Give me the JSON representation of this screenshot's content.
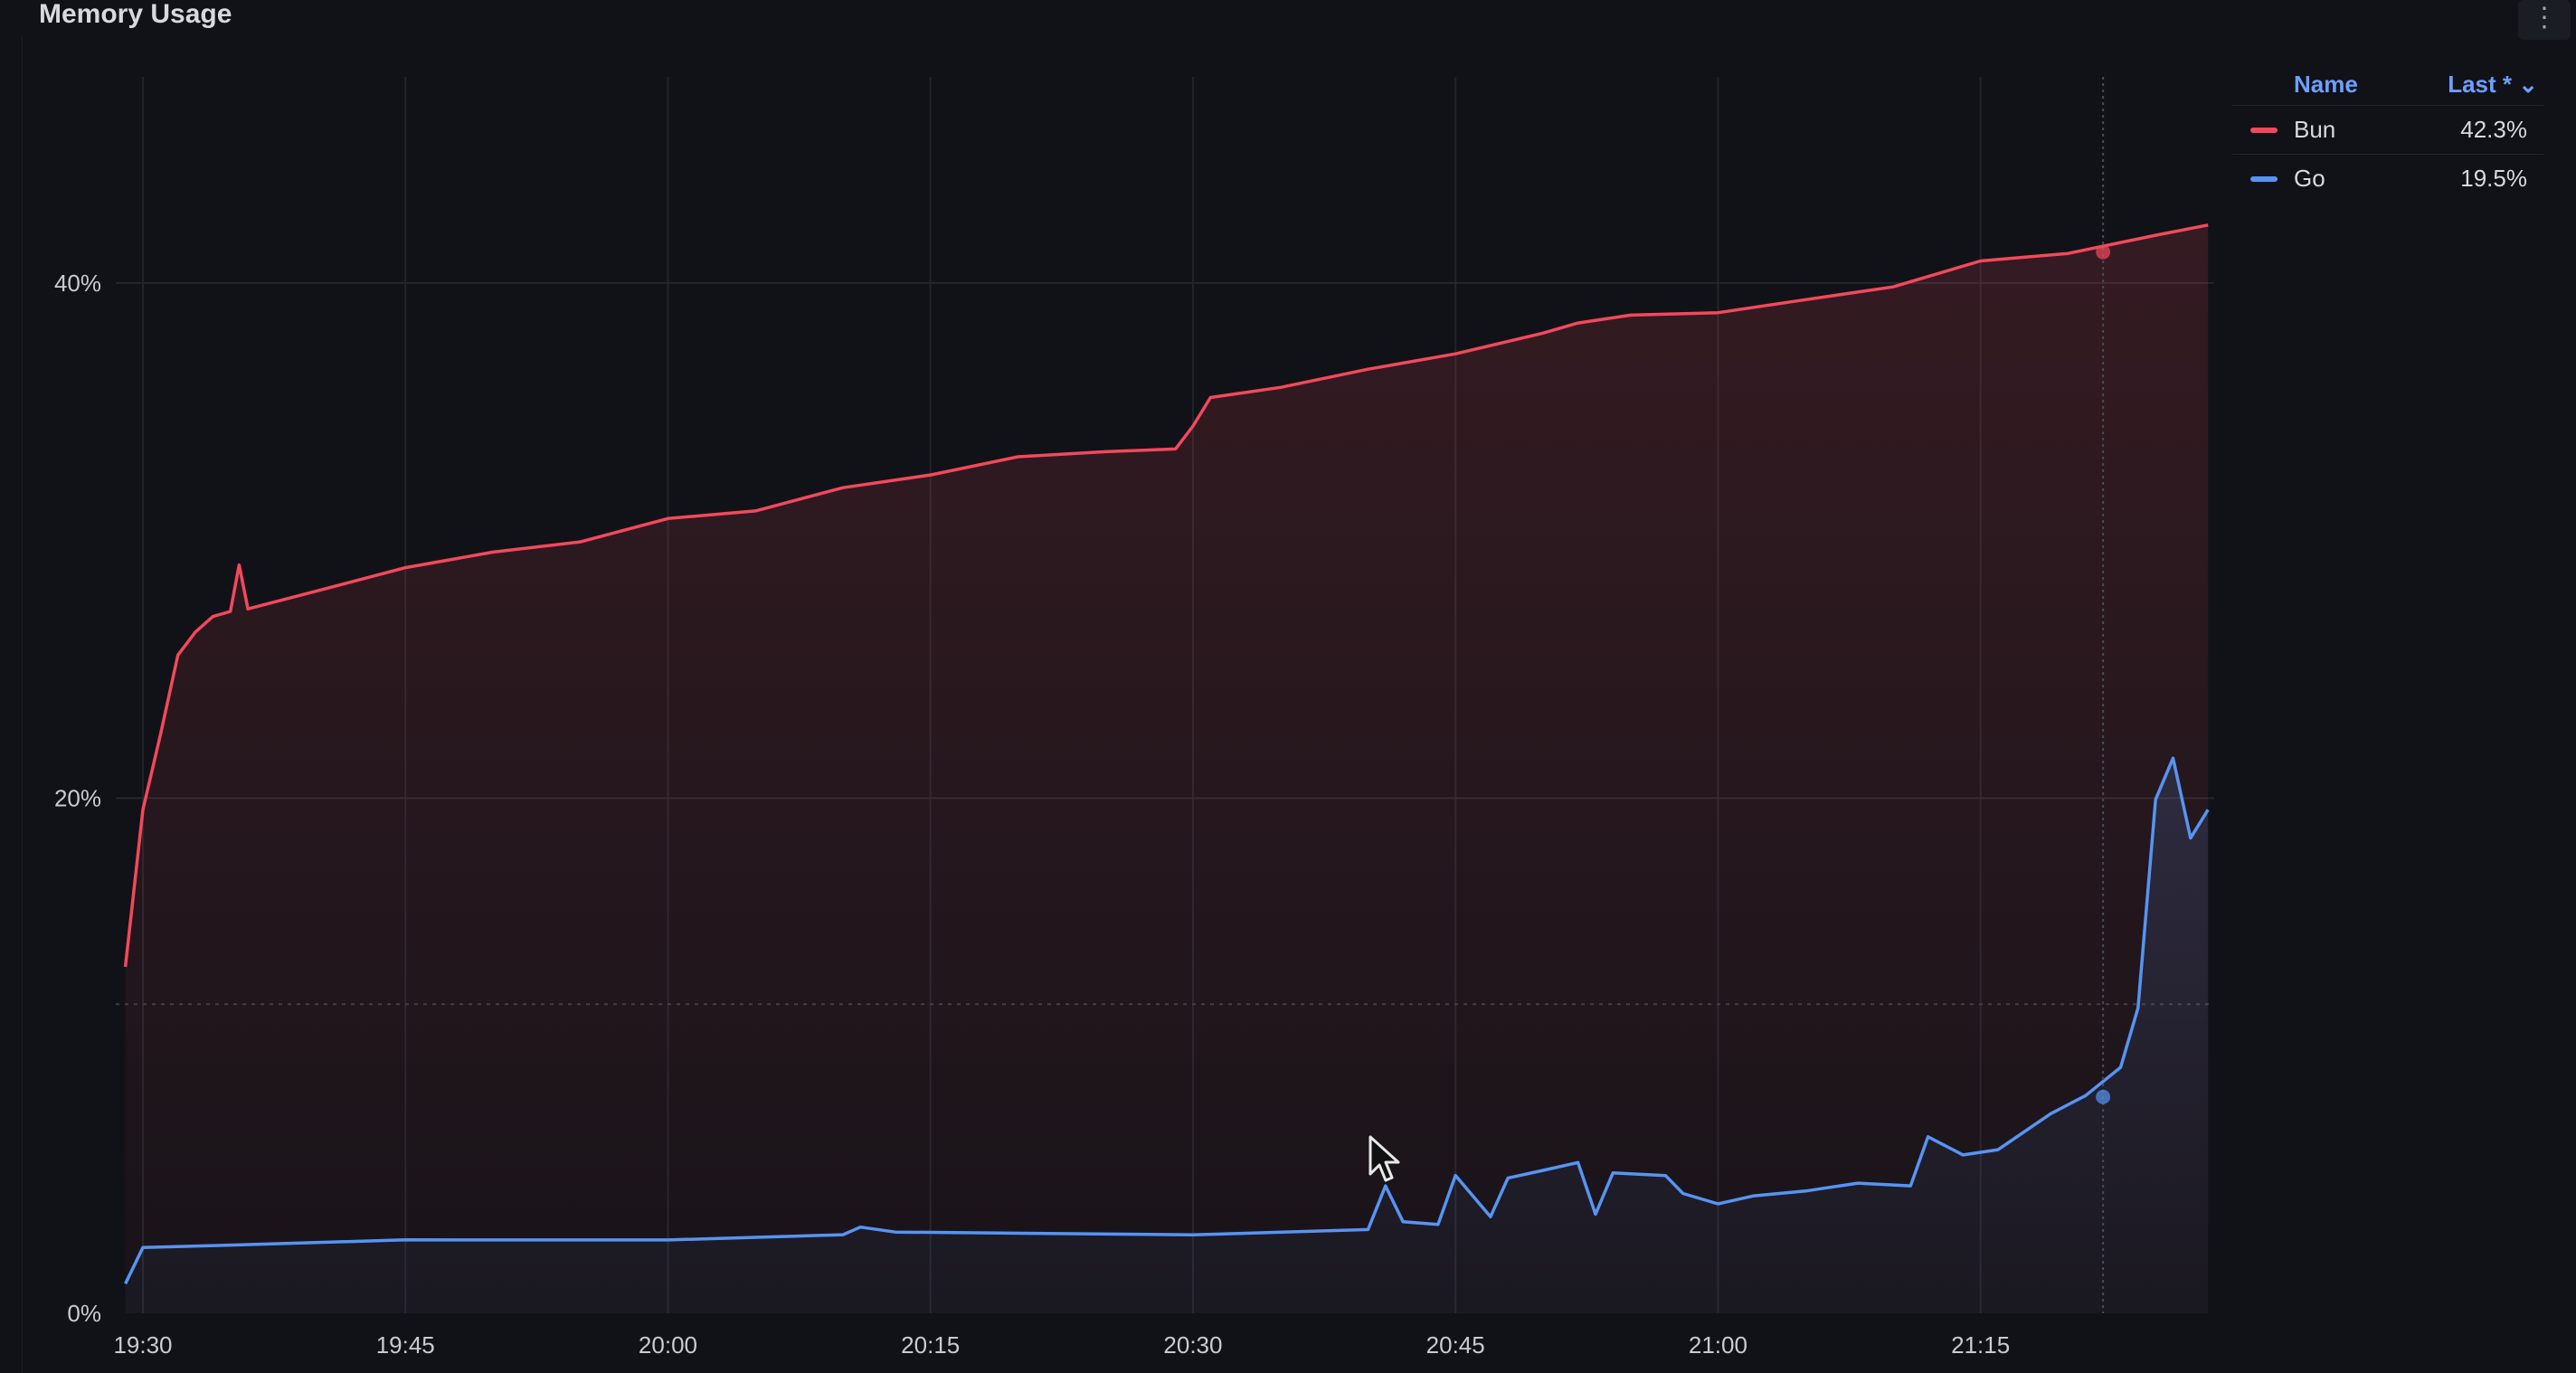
{
  "panel": {
    "title": "Memory Usage",
    "menu_icon": "more-vertical-icon"
  },
  "legend": {
    "headers": {
      "name": "Name",
      "last": "Last * ⌄"
    },
    "items": [
      {
        "name": "Bun",
        "value": "42.3%",
        "color": "#f2495c"
      },
      {
        "name": "Go",
        "value": "19.5%",
        "color": "#5794f2"
      }
    ]
  },
  "chart_data": {
    "type": "area",
    "title": "Memory Usage",
    "xlabel": "",
    "ylabel": "",
    "x_ticks": [
      "19:30",
      "19:45",
      "20:00",
      "20:15",
      "20:30",
      "20:45",
      "21:00",
      "21:15"
    ],
    "y_ticks": [
      "0%",
      "20%",
      "40%"
    ],
    "ylim": [
      0,
      48
    ],
    "xlim": [
      "19:29",
      "21:28"
    ],
    "grid": true,
    "legend_position": "right",
    "threshold": 12,
    "hover_time": "21:22",
    "series": [
      {
        "name": "Bun",
        "color": "#f2495c",
        "points": [
          [
            "19:29",
            13.5
          ],
          [
            "19:30",
            19.5
          ],
          [
            "19:31",
            22.5
          ],
          [
            "19:32",
            25.5
          ],
          [
            "19:33",
            26.5
          ],
          [
            "19:34",
            27.0
          ],
          [
            "19:35",
            27.3
          ],
          [
            "19:35:30",
            29.0
          ],
          [
            "19:36",
            27.4
          ],
          [
            "19:40",
            28.0
          ],
          [
            "19:45",
            29.0
          ],
          [
            "19:50",
            29.5
          ],
          [
            "19:55",
            30.0
          ],
          [
            "20:00",
            30.8
          ],
          [
            "20:05",
            31.2
          ],
          [
            "20:10",
            32.0
          ],
          [
            "20:15",
            32.6
          ],
          [
            "20:20",
            33.2
          ],
          [
            "20:25",
            33.5
          ],
          [
            "20:29",
            33.5
          ],
          [
            "20:30",
            34.5
          ],
          [
            "20:31",
            35.5
          ],
          [
            "20:35",
            36.0
          ],
          [
            "20:40",
            36.6
          ],
          [
            "20:45",
            37.3
          ],
          [
            "20:50",
            38.0
          ],
          [
            "20:52",
            38.5
          ],
          [
            "20:55",
            38.7
          ],
          [
            "21:00",
            38.9
          ],
          [
            "21:05",
            39.3
          ],
          [
            "21:10",
            39.9
          ],
          [
            "21:15",
            40.8
          ],
          [
            "21:20",
            41.2
          ],
          [
            "21:25",
            41.8
          ],
          [
            "21:28",
            42.3
          ]
        ]
      },
      {
        "name": "Go",
        "color": "#5794f2",
        "points": [
          [
            "19:29",
            1.2
          ],
          [
            "19:30",
            2.5
          ],
          [
            "19:35",
            2.7
          ],
          [
            "19:45",
            2.8
          ],
          [
            "20:00",
            2.9
          ],
          [
            "20:10",
            3.0
          ],
          [
            "20:11",
            3.4
          ],
          [
            "20:13",
            3.1
          ],
          [
            "20:30",
            3.1
          ],
          [
            "20:40",
            3.2
          ],
          [
            "20:41",
            5.0
          ],
          [
            "20:42",
            3.5
          ],
          [
            "20:44",
            3.5
          ],
          [
            "20:45",
            5.3
          ],
          [
            "20:47",
            3.8
          ],
          [
            "20:48",
            5.2
          ],
          [
            "20:50",
            5.6
          ],
          [
            "20:52",
            5.8
          ],
          [
            "20:53",
            3.9
          ],
          [
            "20:54",
            5.4
          ],
          [
            "20:57",
            5.4
          ],
          [
            "20:58",
            4.6
          ],
          [
            "21:00",
            4.3
          ],
          [
            "21:02",
            4.5
          ],
          [
            "21:05",
            4.8
          ],
          [
            "21:08",
            5.0
          ],
          [
            "21:11",
            5.0
          ],
          [
            "21:12",
            6.8
          ],
          [
            "21:14",
            6.2
          ],
          [
            "21:16",
            6.3
          ],
          [
            "21:19",
            7.8
          ],
          [
            "21:21",
            8.4
          ],
          [
            "21:23",
            9.6
          ],
          [
            "21:24",
            11.8
          ],
          [
            "21:25",
            20.0
          ],
          [
            "21:26",
            21.5
          ],
          [
            "21:27",
            18.5
          ],
          [
            "21:28",
            19.5
          ]
        ]
      }
    ]
  }
}
